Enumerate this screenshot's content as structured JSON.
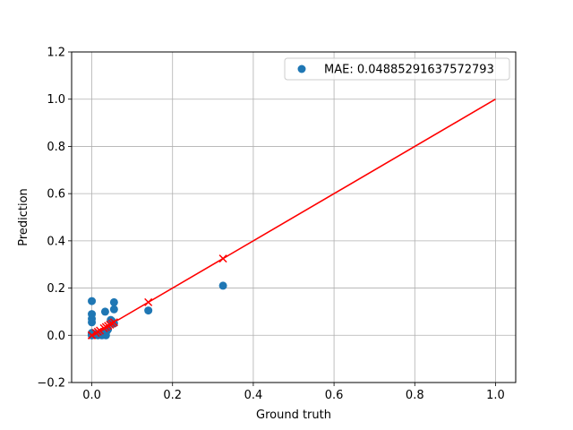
{
  "chart_data": {
    "type": "scatter",
    "title": "",
    "xlabel": "Ground truth",
    "ylabel": "Prediction",
    "xlim": [
      -0.05,
      1.05
    ],
    "ylim": [
      -0.2,
      1.2
    ],
    "xticks": [
      0.0,
      0.2,
      0.4,
      0.6,
      0.8,
      1.0
    ],
    "yticks": [
      -0.2,
      0.0,
      0.2,
      0.4,
      0.6,
      0.8,
      1.0,
      1.2
    ],
    "xtick_labels": [
      "0.0",
      "0.2",
      "0.4",
      "0.6",
      "0.8",
      "1.0"
    ],
    "ytick_labels": [
      "−0.2",
      "0.0",
      "0.2",
      "0.4",
      "0.6",
      "0.8",
      "1.0",
      "1.2"
    ],
    "grid": true,
    "legend_position": "top-right",
    "legend_label": "MAE: 0.04885291637572793",
    "colors": {
      "points": "#1f77b4",
      "reference": "#ff0000"
    },
    "scatter": {
      "x": [
        0.0,
        0.0,
        0.0,
        0.0,
        0.0,
        0.0,
        0.0,
        0.0,
        0.01,
        0.015,
        0.02,
        0.025,
        0.03,
        0.033,
        0.035,
        0.038,
        0.04,
        0.047,
        0.05,
        0.055,
        0.055,
        0.055,
        0.14,
        0.325
      ],
      "y": [
        0.145,
        0.09,
        0.07,
        0.055,
        0.01,
        0.005,
        0.0,
        0.0,
        0.005,
        0.0,
        0.005,
        0.0,
        0.01,
        0.1,
        0.0,
        0.02,
        0.025,
        0.065,
        0.06,
        0.14,
        0.11,
        0.05,
        0.105,
        0.21
      ]
    },
    "markers": {
      "x": [
        0.0,
        0.0,
        0.01,
        0.015,
        0.02,
        0.03,
        0.035,
        0.04,
        0.045,
        0.05,
        0.055,
        0.14,
        0.325
      ],
      "y": [
        0.0,
        0.0,
        0.01,
        0.015,
        0.02,
        0.03,
        0.035,
        0.04,
        0.045,
        0.05,
        0.055,
        0.14,
        0.325
      ]
    },
    "reference_line": {
      "x": [
        0.0,
        1.0
      ],
      "y": [
        0.0,
        1.0
      ]
    }
  }
}
